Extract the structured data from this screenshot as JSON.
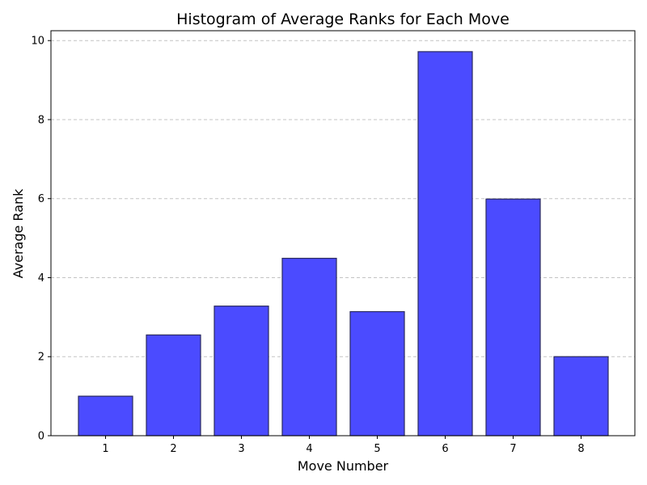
{
  "chart_data": {
    "type": "bar",
    "title": "Histogram of Average Ranks for Each Move",
    "xlabel": "Move Number",
    "ylabel": "Average Rank",
    "categories": [
      "1",
      "2",
      "3",
      "4",
      "5",
      "6",
      "7",
      "8"
    ],
    "values": [
      1.0,
      2.55,
      3.28,
      4.49,
      3.14,
      9.72,
      5.99,
      2.0
    ],
    "ylim": [
      0,
      10.25
    ],
    "yticks": [
      "0",
      "2",
      "4",
      "6",
      "8",
      "10"
    ],
    "grid": "y-axis dashed",
    "colors": {
      "bar_fill": "#4b4bff",
      "bar_edge": "#2a2a5e",
      "grid": "#c4c4c4",
      "axis": "#000000"
    }
  }
}
